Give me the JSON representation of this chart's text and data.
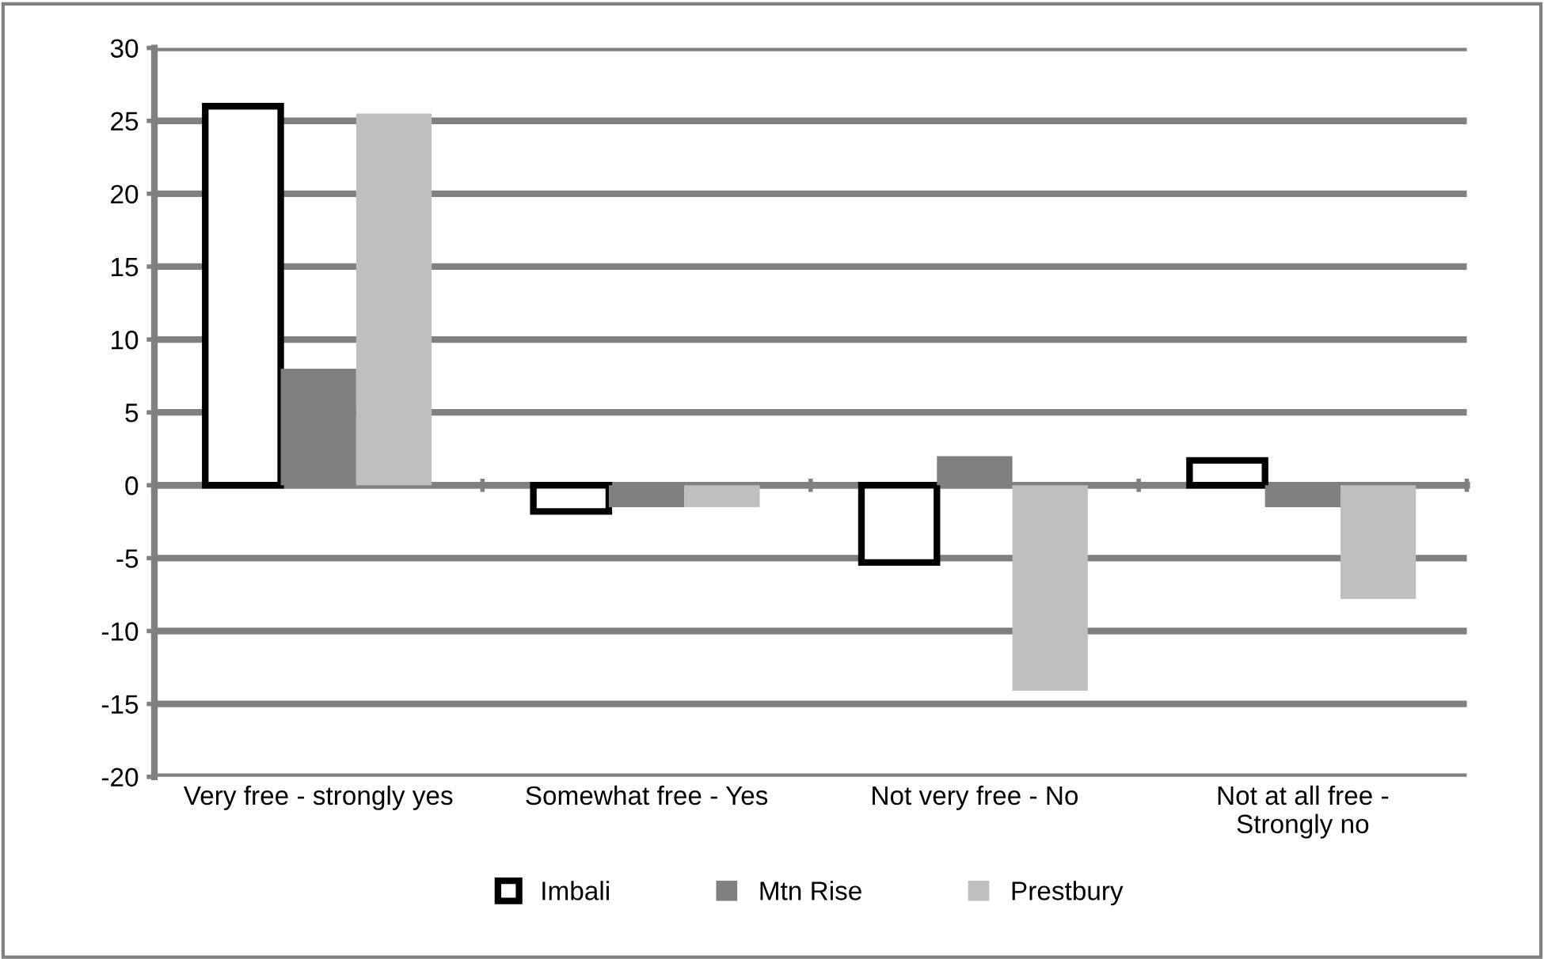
{
  "chart_data": {
    "type": "bar",
    "categories": [
      "Very free - strongly yes",
      "Somewhat free - Yes",
      "Not very free - No",
      "Not at all free -\nStrongly no"
    ],
    "series": [
      {
        "name": "Imbali",
        "color": "#ffffff",
        "values": [
          26,
          -1.8,
          -5.3,
          1.7
        ]
      },
      {
        "name": "Mtn Rise",
        "color": "#808080",
        "values": [
          8,
          -1.5,
          2,
          -1.5
        ]
      },
      {
        "name": "Prestbury",
        "color": "#bfbfbf",
        "values": [
          25.5,
          -1.5,
          -14.1,
          -7.8
        ]
      }
    ],
    "ylim": [
      -20,
      30
    ],
    "yticks": [
      -20,
      -15,
      -10,
      -5,
      0,
      5,
      10,
      15,
      20,
      25,
      30
    ],
    "grid": "y",
    "legend": "bottom"
  }
}
